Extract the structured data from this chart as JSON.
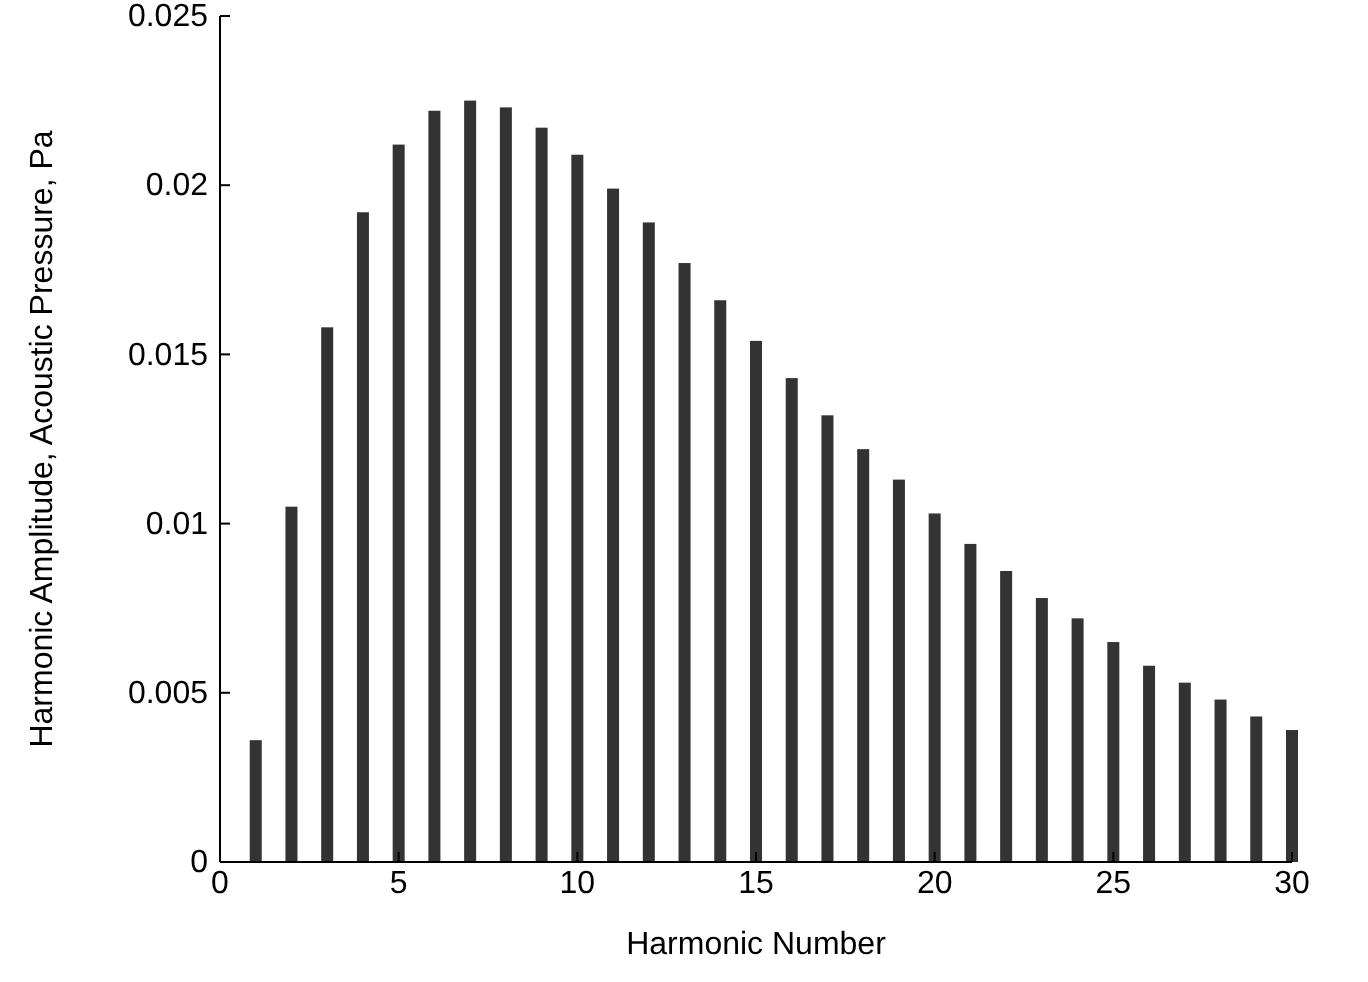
{
  "chart_data": {
    "type": "bar",
    "xlabel": "Harmonic Number",
    "ylabel": "Harmonic Amplitude, Acoustic Pressure, Pa",
    "x": [
      1,
      2,
      3,
      4,
      5,
      6,
      7,
      8,
      9,
      10,
      11,
      12,
      13,
      14,
      15,
      16,
      17,
      18,
      19,
      20,
      21,
      22,
      23,
      24,
      25,
      26,
      27,
      28,
      29,
      30
    ],
    "values": [
      0.0036,
      0.0105,
      0.0158,
      0.0192,
      0.0212,
      0.0222,
      0.0225,
      0.0223,
      0.0217,
      0.0209,
      0.0199,
      0.0189,
      0.0177,
      0.0166,
      0.0154,
      0.0143,
      0.0132,
      0.0122,
      0.0113,
      0.0103,
      0.0094,
      0.0086,
      0.0078,
      0.0072,
      0.0065,
      0.0058,
      0.0053,
      0.0048,
      0.0043,
      0.0039
    ],
    "color": "#333333",
    "xlim": [
      0,
      30
    ],
    "xticks": [
      0,
      5,
      10,
      15,
      20,
      25,
      30
    ],
    "ylim": [
      0,
      0.025
    ],
    "yticks": [
      0,
      0.005,
      0.01,
      0.015,
      0.02,
      0.025
    ]
  }
}
